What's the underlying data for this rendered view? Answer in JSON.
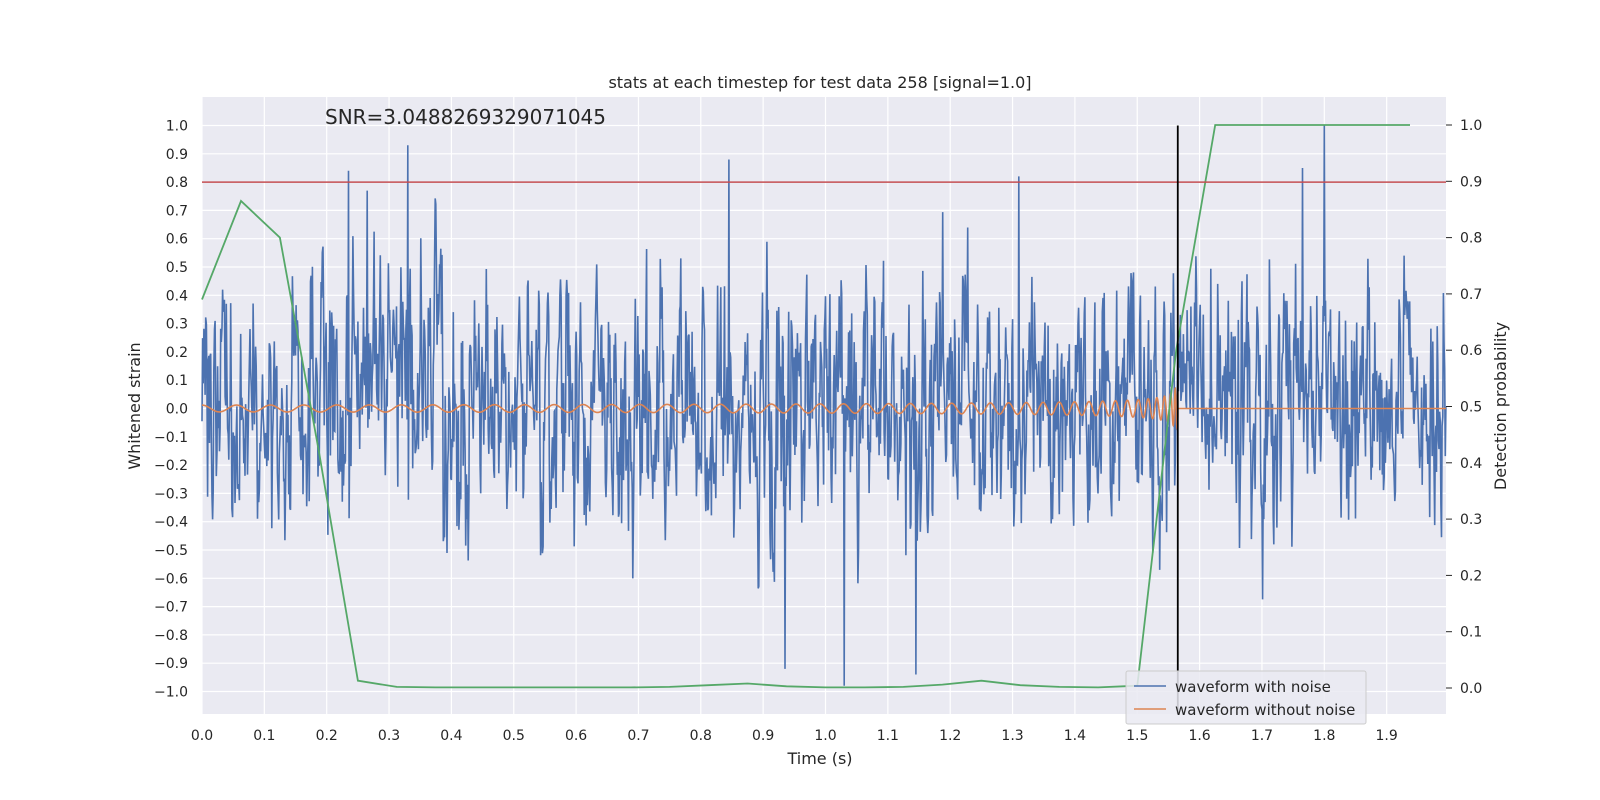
{
  "chart_data": {
    "type": "line",
    "title": "stats at each timestep for test data 258 [signal=1.0]",
    "annotation": "SNR=3.0488269329071045",
    "xlabel": "Time (s)",
    "ylabel": "Whitened strain",
    "y2label": "Detection probability",
    "xlim": [
      0.0,
      2.0
    ],
    "ylim": [
      -1.08,
      1.1
    ],
    "y2lim": [
      -0.05,
      1.05
    ],
    "x_ticks": [
      "0.0",
      "0.1",
      "0.2",
      "0.3",
      "0.4",
      "0.5",
      "0.6",
      "0.7",
      "0.8",
      "0.9",
      "1.0",
      "1.1",
      "1.2",
      "1.3",
      "1.4",
      "1.5",
      "1.6",
      "1.7",
      "1.8",
      "1.9"
    ],
    "y_ticks": [
      "−1.0",
      "−0.9",
      "−0.8",
      "−0.7",
      "−0.6",
      "−0.5",
      "−0.4",
      "−0.3",
      "−0.2",
      "−0.1",
      "0.0",
      "0.1",
      "0.2",
      "0.3",
      "0.4",
      "0.5",
      "0.6",
      "0.7",
      "0.8",
      "0.9",
      "1.0"
    ],
    "y2_ticks": [
      "0.0",
      "0.1",
      "0.2",
      "0.3",
      "0.4",
      "0.5",
      "0.6",
      "0.7",
      "0.8",
      "0.9",
      "1.0"
    ],
    "threshold": 0.8,
    "merger_time": 1.565,
    "series": [
      {
        "name": "waveform with noise",
        "color": "#4c72b0",
        "seed": 258,
        "amplitude": 0.34,
        "peaks": [
          [
            0.235,
            0.84
          ],
          [
            0.33,
            0.93
          ],
          [
            0.845,
            0.88
          ],
          [
            1.03,
            -0.98
          ],
          [
            1.145,
            -0.94
          ],
          [
            1.31,
            0.82
          ],
          [
            1.8,
            1.0
          ],
          [
            1.765,
            0.85
          ],
          [
            0.935,
            -0.92
          ],
          [
            0.265,
            0.77
          ]
        ]
      },
      {
        "name": "waveform without noise",
        "color": "#dd8452",
        "chirp_start_freq": 18,
        "end_time": 1.565,
        "max_amplitude": 0.095
      },
      {
        "name": "detection probability",
        "color": "#55a868",
        "axis": "right",
        "x": [
          0.0,
          0.0625,
          0.125,
          0.1875,
          0.25,
          0.3125,
          0.375,
          0.4375,
          0.5,
          0.5625,
          0.625,
          0.6875,
          0.75,
          0.8125,
          0.875,
          0.9375,
          1.0,
          1.0625,
          1.125,
          1.1875,
          1.25,
          1.3125,
          1.375,
          1.4375,
          1.5,
          1.5625,
          1.625,
          1.6875,
          1.75,
          1.8125,
          1.875,
          1.9375
        ],
        "y": [
          0.69,
          0.865,
          0.8,
          0.42,
          0.013,
          0.002,
          0.001,
          0.001,
          0.001,
          0.001,
          0.001,
          0.001,
          0.002,
          0.005,
          0.008,
          0.003,
          0.001,
          0.001,
          0.002,
          0.006,
          0.013,
          0.005,
          0.002,
          0.001,
          0.004,
          0.6,
          1.0,
          1.0,
          1.0,
          1.0,
          1.0,
          1.0
        ]
      }
    ]
  }
}
